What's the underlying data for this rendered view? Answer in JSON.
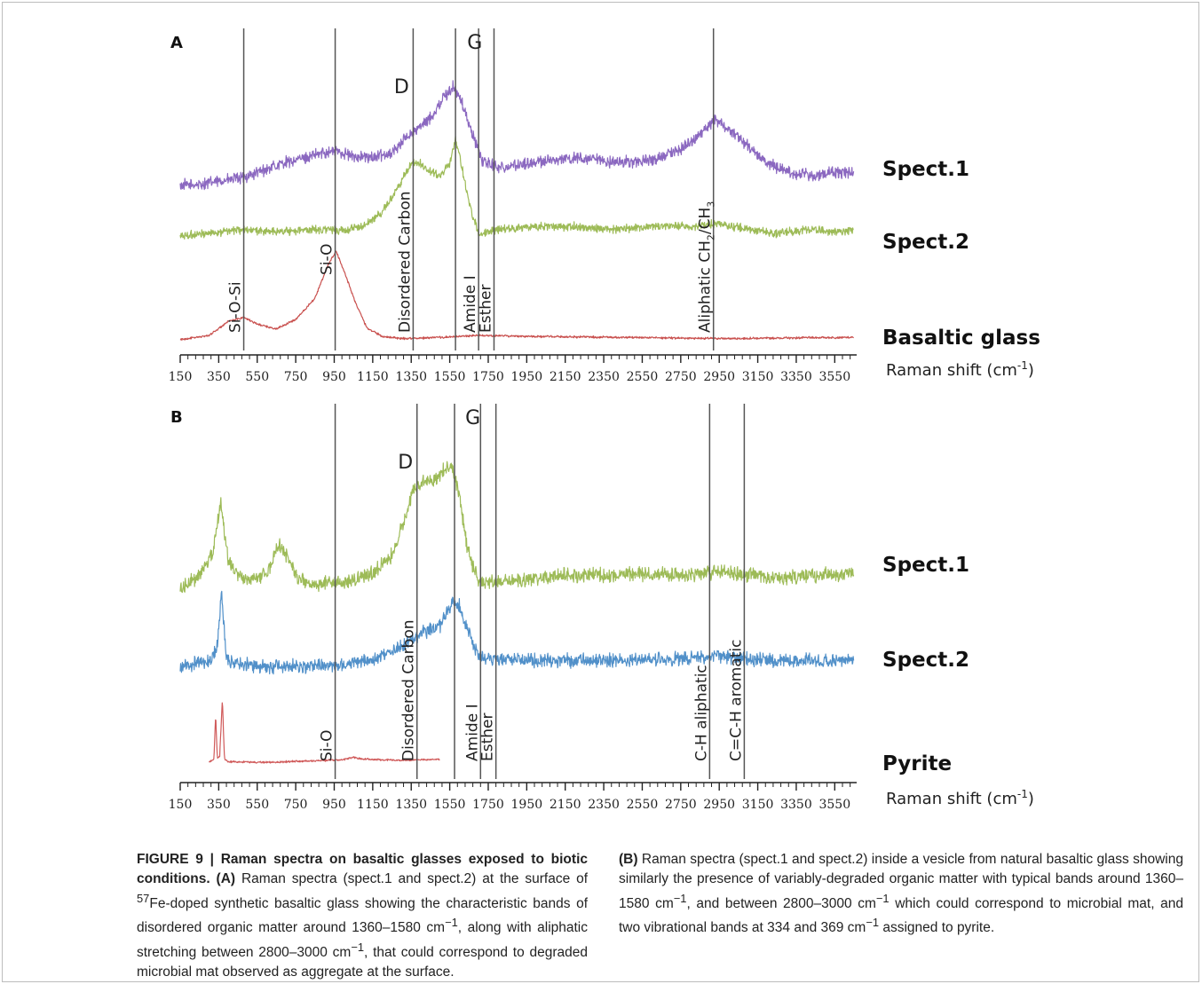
{
  "chart_data": [
    {
      "panel": "A",
      "type": "line",
      "xlabel": "Raman shift (cm-1)",
      "xlim": [
        150,
        3650
      ],
      "xticks": [
        150,
        350,
        550,
        750,
        950,
        1150,
        1350,
        1550,
        1750,
        1950,
        2150,
        2350,
        2550,
        2750,
        2950,
        3150,
        3350,
        3550
      ],
      "grid": false,
      "legend": "labels at right of each trace",
      "series": [
        {
          "name": "Spect.1",
          "color": "#8b68c0",
          "noise": 0.35,
          "baseline": 0.0,
          "x": [
            150,
            250,
            350,
            450,
            520,
            600,
            700,
            800,
            900,
            960,
            1050,
            1150,
            1250,
            1330,
            1400,
            1460,
            1520,
            1570,
            1610,
            1660,
            1720,
            1800,
            1900,
            2050,
            2200,
            2400,
            2600,
            2750,
            2850,
            2930,
            3000,
            3100,
            3200,
            3350,
            3450,
            3550,
            3650
          ],
          "y": [
            0.05,
            0.15,
            0.35,
            0.55,
            0.8,
            1.2,
            1.7,
            2.0,
            2.4,
            2.5,
            2.1,
            2.0,
            2.4,
            3.5,
            4.2,
            5.0,
            6.3,
            7.0,
            6.0,
            4.0,
            1.8,
            1.3,
            1.5,
            1.8,
            2.0,
            1.7,
            1.8,
            2.6,
            3.6,
            4.8,
            4.0,
            2.8,
            1.6,
            0.9,
            0.7,
            1.0,
            1.0
          ]
        },
        {
          "name": "Spect.2",
          "color": "#9dbb57",
          "noise": 0.25,
          "baseline": 0.0,
          "x": [
            150,
            300,
            450,
            600,
            750,
            900,
            1000,
            1100,
            1200,
            1280,
            1350,
            1400,
            1450,
            1500,
            1550,
            1580,
            1620,
            1660,
            1700,
            1800,
            2000,
            2200,
            2400,
            2600,
            2800,
            2950,
            3100,
            3250,
            3400,
            3550,
            3650
          ],
          "y": [
            0.1,
            0.35,
            0.55,
            0.45,
            0.5,
            0.6,
            0.5,
            0.8,
            1.8,
            3.5,
            5.2,
            5.2,
            4.6,
            4.4,
            5.2,
            7.0,
            4.5,
            2.0,
            0.3,
            0.6,
            0.8,
            0.8,
            0.6,
            0.8,
            0.8,
            1.0,
            0.6,
            0.3,
            0.6,
            0.4,
            0.6
          ]
        },
        {
          "name": "Basaltic glass",
          "color": "#c9514f",
          "noise": 0.04,
          "baseline": 0.0,
          "x": [
            150,
            300,
            400,
            480,
            560,
            650,
            750,
            850,
            920,
            960,
            1000,
            1060,
            1120,
            1200,
            1300,
            1500,
            1700,
            2000,
            2500,
            3000,
            3500,
            3650
          ],
          "y": [
            0.05,
            0.25,
            0.9,
            1.1,
            0.75,
            0.55,
            1.0,
            2.0,
            3.6,
            4.2,
            3.3,
            1.8,
            0.6,
            0.2,
            0.1,
            0.15,
            0.25,
            0.2,
            0.15,
            0.1,
            0.15,
            0.15
          ]
        }
      ],
      "band_lines": [
        {
          "x": 480,
          "label": "Si-O-Si"
        },
        {
          "x": 955,
          "label": "Si-O"
        },
        {
          "x": 1360,
          "label": "Disordered Carbon"
        },
        {
          "x": 1580,
          "label": ""
        },
        {
          "x": 1700,
          "label": "Amide I"
        },
        {
          "x": 1780,
          "label": "Esther"
        },
        {
          "x": 2920,
          "label": "Aliphatic CH2/CH3"
        }
      ],
      "peak_letters": [
        {
          "x": 1300,
          "label": "D"
        },
        {
          "x": 1680,
          "label": "G"
        }
      ]
    },
    {
      "panel": "B",
      "type": "line",
      "xlabel": "Raman shift (cm-1)",
      "xlim": [
        150,
        3650
      ],
      "xticks": [
        150,
        350,
        550,
        750,
        950,
        1150,
        1350,
        1550,
        1750,
        1950,
        2150,
        2350,
        2550,
        2750,
        2950,
        3150,
        3350,
        3550
      ],
      "grid": false,
      "legend": "labels at right of each trace",
      "series": [
        {
          "name": "Spect.1",
          "color": "#9dbb57",
          "noise": 0.45,
          "baseline": 0.0,
          "x": [
            150,
            250,
            320,
            360,
            400,
            450,
            520,
            600,
            660,
            700,
            760,
            850,
            950,
            1050,
            1150,
            1250,
            1320,
            1360,
            1420,
            1480,
            1530,
            1560,
            1600,
            1640,
            1700,
            1800,
            2000,
            2200,
            2400,
            2600,
            2800,
            2950,
            3100,
            3300,
            3500,
            3650
          ],
          "y": [
            0.0,
            1.0,
            2.6,
            6.5,
            2.0,
            1.0,
            0.6,
            1.0,
            3.3,
            2.5,
            0.6,
            0.3,
            0.4,
            0.6,
            1.1,
            2.5,
            5.3,
            7.5,
            8.0,
            8.3,
            9.0,
            9.3,
            7.0,
            3.0,
            0.5,
            0.4,
            0.8,
            1.0,
            1.0,
            1.1,
            1.0,
            1.2,
            1.0,
            0.8,
            1.0,
            1.1
          ]
        },
        {
          "name": "Spect.2",
          "color": "#5190c9",
          "noise": 0.5,
          "baseline": 0.0,
          "x": [
            150,
            300,
            340,
            365,
            390,
            450,
            600,
            800,
            1000,
            1150,
            1250,
            1350,
            1420,
            1500,
            1560,
            1600,
            1640,
            1700,
            1800,
            2000,
            2200,
            2400,
            2600,
            2800,
            2950,
            3100,
            3300,
            3500,
            3650
          ],
          "y": [
            0.2,
            0.8,
            1.8,
            6.5,
            1.0,
            0.5,
            0.3,
            0.3,
            0.5,
            0.9,
            1.5,
            2.5,
            3.3,
            3.8,
            5.8,
            5.5,
            3.5,
            1.2,
            1.0,
            0.8,
            0.8,
            0.8,
            0.9,
            1.0,
            1.2,
            0.9,
            0.8,
            0.8,
            0.9
          ]
        },
        {
          "name": "Pyrite",
          "color": "#d05a5a",
          "noise": 0.06,
          "baseline": 0.0,
          "x": [
            300,
            325,
            334,
            343,
            355,
            369,
            380,
            400,
            600,
            800,
            1000,
            1050,
            1100,
            1300,
            1500
          ],
          "y": [
            0.1,
            0.3,
            3.6,
            0.4,
            0.5,
            4.8,
            0.3,
            0.1,
            0.05,
            0.15,
            0.25,
            0.45,
            0.3,
            0.2,
            0.3
          ]
        }
      ],
      "band_lines": [
        {
          "x": 955,
          "label": "Si-O"
        },
        {
          "x": 1380,
          "label": "Disordered Carbon"
        },
        {
          "x": 1575,
          "label": ""
        },
        {
          "x": 1710,
          "label": "Amide I"
        },
        {
          "x": 1790,
          "label": "Esther"
        },
        {
          "x": 2900,
          "label": "C-H aliphatic"
        },
        {
          "x": 3080,
          "label": "C=C-H aromatic"
        }
      ],
      "peak_letters": [
        {
          "x": 1320,
          "label": "D"
        },
        {
          "x": 1670,
          "label": "G"
        }
      ]
    }
  ],
  "caption": {
    "figure_label": "FIGURE 9 | Raman spectra on basaltic glasses exposed to biotic conditions.",
    "a_label": "(A)",
    "a_text": "Raman spectra (spect.1 and spect.2) at the surface of 57Fe-doped synthetic basaltic glass showing the characteristic bands of disordered organic matter around 1360–1580 cm−1, along with aliphatic stretching between 2800–3000 cm−1, that could correspond to degraded microbial mat observed as aggregate at the surface.",
    "b_label": "(B)",
    "b_text": "Raman spectra (spect.1 and spect.2) inside a vesicle from natural basaltic glass showing similarly the presence of variably-degraded organic matter with typical bands around 1360–1580 cm−1, and between 2800–3000 cm−1 which could correspond to microbial mat, and two vibrational bands at 334 and 369 cm−1 assigned to pyrite."
  }
}
